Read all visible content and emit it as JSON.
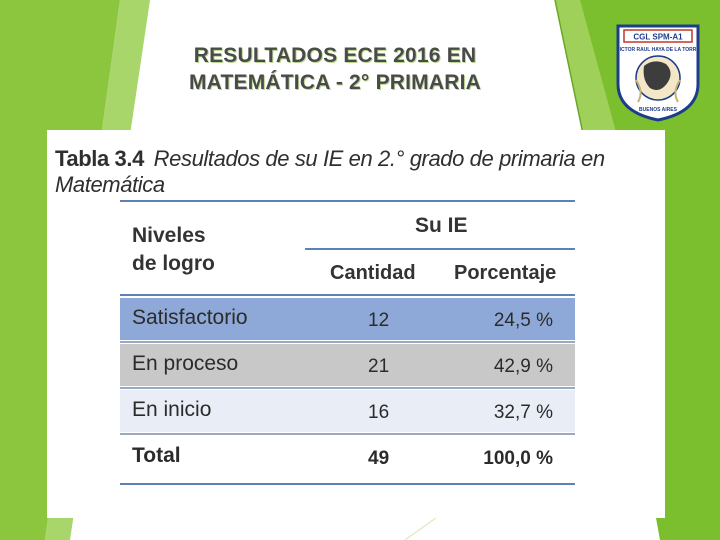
{
  "slide": {
    "title_line1": "RESULTADOS ECE 2016 EN",
    "title_line2": "MATEMÁTICA - 2° PRIMARIA"
  },
  "logo": {
    "top_text": "CGL SPM-A1",
    "arc_text": "VICTOR RAUL HAYA DE LA TORRE",
    "bottom_text": "BUENOS AIRES"
  },
  "table": {
    "caption_number": "Tabla 3.4",
    "caption_text": "Resultados de su IE en 2.° grado de primaria en Matemática",
    "header_levels_line1": "Niveles",
    "header_levels_line2": "de logro",
    "header_group": "Su IE",
    "header_quantity": "Cantidad",
    "header_percent": "Porcentaje",
    "rows": [
      {
        "label": "Satisfactorio",
        "quantity": "12",
        "percent": "24,5 %"
      },
      {
        "label": "En proceso",
        "quantity": "21",
        "percent": "42,9 %"
      },
      {
        "label": "En inicio",
        "quantity": "16",
        "percent": "32,7 %"
      },
      {
        "label": "Total",
        "quantity": "49",
        "percent": "100,0 %"
      }
    ]
  },
  "colors": {
    "accent_green": "#7cbf2e",
    "row_satisfactorio": "#8ea9d8",
    "row_en_proceso": "#c8c8c8",
    "row_en_inicio": "#e9edf6",
    "row_total": "#ffffff"
  }
}
